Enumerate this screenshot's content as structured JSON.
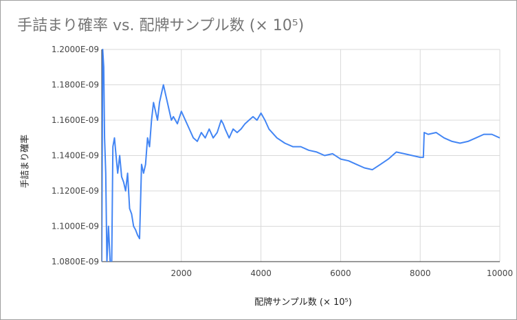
{
  "chart_data": {
    "type": "line",
    "title": "手詰まり確率 vs. 配牌サンプル数 (× 10⁵)",
    "xlabel": "配牌サンプル数 (× 10⁵)",
    "ylabel": "手詰まり確率",
    "xlim": [
      0,
      10000
    ],
    "ylim": [
      1.08e-09,
      1.2e-09
    ],
    "x_ticks": [
      2000,
      4000,
      6000,
      8000,
      10000
    ],
    "x_tick_labels": [
      "2000",
      "4000",
      "6000",
      "8000",
      "10000"
    ],
    "y_ticks": [
      1.08e-09,
      1.1e-09,
      1.12e-09,
      1.14e-09,
      1.16e-09,
      1.18e-09,
      1.2e-09
    ],
    "y_tick_labels": [
      "1.0800E-09",
      "1.1000E-09",
      "1.1200E-09",
      "1.1400E-09",
      "1.1600E-09",
      "1.1800E-09",
      "1.2000E-09"
    ],
    "grid": true,
    "line_color": "#4285f4",
    "series": [
      {
        "x": [
          0,
          25,
          50,
          70,
          100,
          130,
          170,
          210,
          250,
          280,
          320,
          360,
          400,
          450,
          500,
          550,
          600,
          650,
          700,
          750,
          800,
          850,
          900,
          950,
          1000,
          1050,
          1100,
          1150,
          1200,
          1250,
          1300,
          1350,
          1400,
          1450,
          1500,
          1550,
          1600,
          1650,
          1700,
          1750,
          1800,
          1900,
          2000,
          2100,
          2200,
          2300,
          2400,
          2500,
          2600,
          2700,
          2800,
          2900,
          3000,
          3050,
          3100,
          3200,
          3300,
          3400,
          3500,
          3600,
          3700,
          3800,
          3900,
          4000,
          4100,
          4200,
          4400,
          4600,
          4800,
          5000,
          5200,
          5400,
          5600,
          5800,
          6000,
          6200,
          6400,
          6600,
          6800,
          7000,
          7200,
          7400,
          7600,
          7800,
          8000,
          8080,
          8100,
          8200,
          8400,
          8600,
          8800,
          9000,
          9200,
          9400,
          9600,
          9800,
          10000
        ],
        "values": [
          1.08e-09,
          1.2e-09,
          1.19e-09,
          1.15e-09,
          1.13e-09,
          1.08e-09,
          1.1e-09,
          1.08e-09,
          1.08e-09,
          1.145e-09,
          1.15e-09,
          1.14e-09,
          1.13e-09,
          1.14e-09,
          1.128e-09,
          1.125e-09,
          1.12e-09,
          1.13e-09,
          1.11e-09,
          1.107e-09,
          1.1e-09,
          1.098e-09,
          1.095e-09,
          1.093e-09,
          1.135e-09,
          1.13e-09,
          1.135e-09,
          1.15e-09,
          1.145e-09,
          1.16e-09,
          1.17e-09,
          1.165e-09,
          1.16e-09,
          1.17e-09,
          1.175e-09,
          1.18e-09,
          1.175e-09,
          1.17e-09,
          1.165e-09,
          1.16e-09,
          1.162e-09,
          1.158e-09,
          1.165e-09,
          1.16e-09,
          1.155e-09,
          1.15e-09,
          1.148e-09,
          1.153e-09,
          1.15e-09,
          1.155e-09,
          1.15e-09,
          1.153e-09,
          1.16e-09,
          1.158e-09,
          1.155e-09,
          1.15e-09,
          1.155e-09,
          1.153e-09,
          1.155e-09,
          1.158e-09,
          1.16e-09,
          1.162e-09,
          1.16e-09,
          1.164e-09,
          1.16e-09,
          1.155e-09,
          1.15e-09,
          1.147e-09,
          1.145e-09,
          1.145e-09,
          1.143e-09,
          1.142e-09,
          1.14e-09,
          1.141e-09,
          1.138e-09,
          1.137e-09,
          1.135e-09,
          1.133e-09,
          1.132e-09,
          1.135e-09,
          1.138e-09,
          1.142e-09,
          1.141e-09,
          1.14e-09,
          1.139e-09,
          1.139e-09,
          1.153e-09,
          1.152e-09,
          1.153e-09,
          1.15e-09,
          1.148e-09,
          1.147e-09,
          1.148e-09,
          1.15e-09,
          1.152e-09,
          1.152e-09,
          1.15e-09
        ]
      }
    ]
  }
}
